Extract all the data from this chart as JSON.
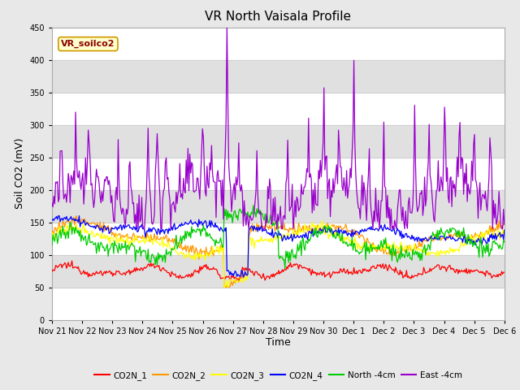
{
  "title": "VR North Vaisala Profile",
  "xlabel": "Time",
  "ylabel": "Soil CO2 (mV)",
  "ylim": [
    0,
    450
  ],
  "yticks": [
    0,
    50,
    100,
    150,
    200,
    250,
    300,
    350,
    400,
    450
  ],
  "annotation_text": "VR_soilco2",
  "xtick_labels": [
    "Nov 21",
    "Nov 22",
    "Nov 23",
    "Nov 24",
    "Nov 25",
    "Nov 26",
    "Nov 27",
    "Nov 28",
    "Nov 29",
    "Nov 30",
    "Dec 1",
    "Dec 2",
    "Dec 3",
    "Dec 4",
    "Dec 5",
    "Dec 6"
  ],
  "series_names": [
    "CO2N_1",
    "CO2N_2",
    "CO2N_3",
    "CO2N_4",
    "North -4cm",
    "East -4cm"
  ],
  "series_colors": [
    "#ff0000",
    "#ff9900",
    "#ffff00",
    "#0000ff",
    "#00cc00",
    "#9900cc"
  ],
  "band_ranges": [
    [
      50,
      100
    ],
    [
      150,
      200
    ],
    [
      250,
      300
    ],
    [
      350,
      400
    ]
  ],
  "band_color": "#e0e0e0",
  "plot_bg_color": "#ffffff",
  "fig_bg_color": "#e8e8e8",
  "num_points": 500,
  "title_fontsize": 11,
  "tick_fontsize": 7,
  "ylabel_fontsize": 9,
  "xlabel_fontsize": 9
}
